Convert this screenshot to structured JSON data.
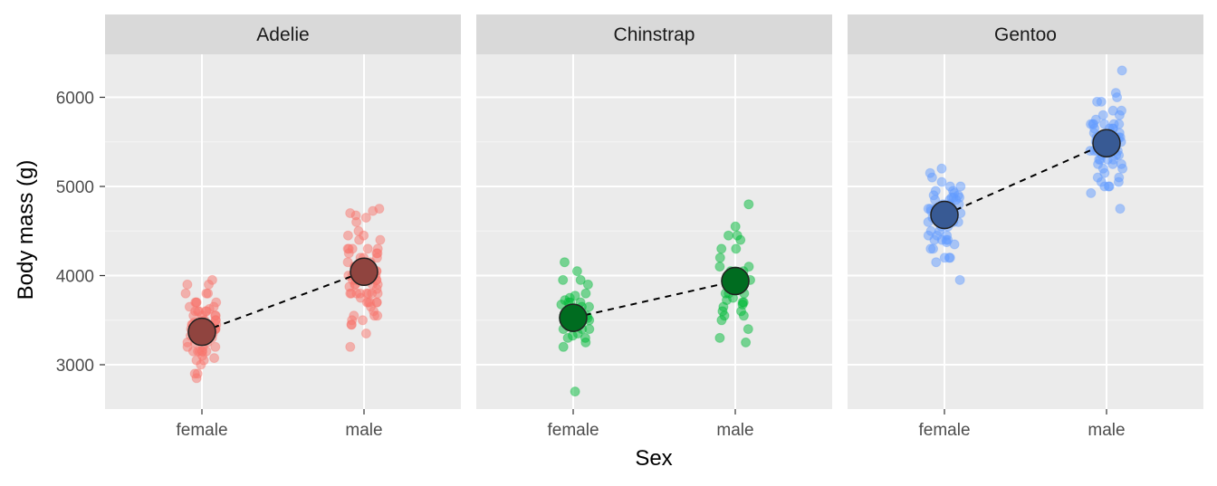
{
  "chart_data": {
    "type": "scatter",
    "facet_by": "species",
    "xlabel": "Sex",
    "ylabel": "Body mass (g)",
    "categories": [
      "female",
      "male"
    ],
    "y_ticks": [
      3000,
      4000,
      5000,
      6000
    ],
    "ylim": [
      2520,
      6480
    ],
    "grid": true,
    "legend": "none",
    "point_alpha": 0.5,
    "mean_line": "dashed",
    "panels": [
      {
        "name": "Adelie",
        "color": "#F8766D",
        "mean": {
          "female": 3369,
          "male": 4043
        },
        "points": {
          "female": [
            3800,
            3400,
            3250,
            3450,
            3625,
            3200,
            3700,
            3450,
            3325,
            3400,
            3800,
            3800,
            3950,
            3550,
            3150,
            3900,
            3300,
            3900,
            3325,
            3000,
            3500,
            3300,
            3650,
            3150,
            3550,
            3300,
            3600,
            3500,
            3200,
            3400,
            3600,
            2850,
            3350,
            3050,
            3325,
            3700,
            3150,
            3600,
            3700,
            3475,
            3325,
            3075,
            3200,
            3475,
            3050,
            3500,
            3425,
            3450,
            3550,
            3250,
            2900,
            3350,
            3250,
            3500,
            3100,
            3400,
            3600,
            2900,
            3300,
            3400,
            3700,
            3350,
            3600,
            3150,
            3400,
            3450,
            3650,
            3150,
            3325,
            3550,
            3150,
            3300,
            3450
          ],
          "male": [
            3750,
            3650,
            4675,
            3800,
            4400,
            4500,
            4200,
            3600,
            3950,
            3800,
            3550,
            3200,
            4050,
            3950,
            3800,
            4400,
            3900,
            3700,
            4300,
            3500,
            3700,
            4000,
            4300,
            4050,
            3700,
            4250,
            3550,
            3900,
            3800,
            4450,
            4000,
            4700,
            4150,
            4300,
            3900,
            3800,
            4200,
            4050,
            3950,
            4050,
            4000,
            3800,
            3700,
            3450,
            4450,
            4300,
            4250,
            3800,
            3900,
            4000,
            4200,
            3550,
            4750,
            3350,
            3700,
            4600,
            4100,
            4100,
            4650,
            3875,
            4725,
            4150,
            4000,
            4050,
            4300,
            3450,
            3800,
            3500,
            4100,
            3850,
            4250,
            3950,
            4000
          ]
        }
      },
      {
        "name": "Chinstrap",
        "color": "#00BA38",
        "mean": {
          "female": 3527,
          "male": 3939
        },
        "points": {
          "female": [
            3500,
            3900,
            3650,
            3525,
            3725,
            3950,
            3250,
            3750,
            4150,
            3700,
            3800,
            3775,
            3700,
            4050,
            3575,
            3300,
            3700,
            3450,
            3400,
            3600,
            3650,
            3400,
            3500,
            3300,
            3550,
            3200,
            3350,
            3675,
            3450,
            2700,
            3400,
            3525,
            3325,
            3950
          ],
          "male": [
            3900,
            3550,
            3900,
            4300,
            4450,
            4550,
            3700,
            4050,
            4050,
            4100,
            3800,
            3950,
            3800,
            3675,
            4450,
            3725,
            4400,
            3750,
            4300,
            3800,
            3250,
            4100,
            4800,
            3600,
            3950,
            3300,
            3550,
            3950,
            3700,
            3400,
            4200,
            3650,
            3500,
            3600
          ]
        }
      },
      {
        "name": "Gentoo",
        "color": "#619CFF",
        "mean": {
          "female": 4680,
          "male": 5485
        },
        "points": {
          "female": [
            4500,
            4450,
            4550,
            4800,
            4400,
            4650,
            4650,
            4200,
            4150,
            4800,
            5000,
            4400,
            5000,
            4600,
            4700,
            5050,
            5150,
            4950,
            4350,
            3950,
            4300,
            4900,
            4200,
            5100,
            4850,
            4400,
            4900,
            4300,
            4450,
            4200,
            4400,
            4700,
            4700,
            4750,
            5200,
            4700,
            4600,
            4750,
            4625,
            4725,
            4750,
            4600,
            4875,
            4950,
            4750,
            4850,
            4875,
            4925,
            4850,
            4450,
            4500,
            4550,
            4700,
            4650,
            4375,
            4875,
            4800,
            4750
          ],
          "male": [
            5700,
            5700,
            5400,
            5200,
            5150,
            5550,
            5850,
            6300,
            5350,
            5700,
            5050,
            5100,
            5650,
            5550,
            5250,
            6050,
            5400,
            5250,
            5350,
            5700,
            4750,
            5550,
            5400,
            5300,
            5300,
            5000,
            5050,
            5000,
            5550,
            5300,
            5650,
            5700,
            5800,
            5550,
            5000,
            5100,
            5800,
            6000,
            5950,
            5450,
            5350,
            5600,
            5300,
            5550,
            5400,
            5650,
            5200,
            4925,
            5250,
            5600,
            5500,
            5950,
            5500,
            5850,
            5750,
            5400,
            5600,
            5700,
            5500,
            5650,
            5550
          ]
        }
      }
    ]
  }
}
